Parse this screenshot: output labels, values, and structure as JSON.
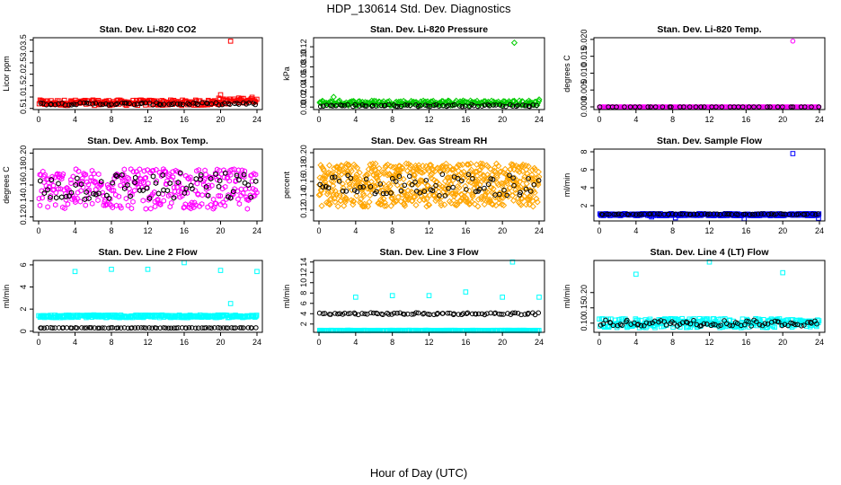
{
  "figure": {
    "title": "HDP_130614  Std. Dev. Diagnostics",
    "xlabel": "Hour of Day (UTC)"
  },
  "chart_data": [
    {
      "type": "scatter",
      "title": "Stan. Dev. Li-820 CO2",
      "ylabel": "Licor ppm",
      "xlim": [
        0,
        24
      ],
      "xticks": [
        "0",
        "4",
        "8",
        "12",
        "16",
        "20",
        "24"
      ],
      "ylim": [
        0.45,
        3.6
      ],
      "yticks": [
        "0.5",
        "1.0",
        "1.5",
        "2.0",
        "2.5",
        "3.0",
        "3.5"
      ],
      "series": [
        {
          "name": "red",
          "color": "#ff0000",
          "marker": "square",
          "base": 0.75,
          "spread": 0.12,
          "n": 240,
          "outliers": [
            [
              21.1,
              3.45
            ],
            [
              20.0,
              1.1
            ],
            [
              19.8,
              0.95
            ]
          ]
        },
        {
          "name": "black",
          "color": "#000000",
          "marker": "circle",
          "base": 0.7,
          "spread": 0.05,
          "n": 70
        }
      ]
    },
    {
      "type": "scatter",
      "title": "Stan. Dev. Li-820 Pressure",
      "ylabel": "kPa",
      "xlim": [
        0,
        24
      ],
      "xticks": [
        "0",
        "4",
        "8",
        "12",
        "16",
        "20",
        "24"
      ],
      "ylim": [
        -0.005,
        0.138
      ],
      "yticks": [
        "0.00",
        "0.02",
        "0.04",
        "0.06",
        "0.08",
        "0.10",
        "0.12"
      ],
      "series": [
        {
          "name": "green",
          "color": "#00cc00",
          "marker": "diamond",
          "base": 0.008,
          "spread": 0.005,
          "n": 240,
          "outliers": [
            [
              21.3,
              0.128
            ],
            [
              24.0,
              0.015
            ],
            [
              1.6,
              0.02
            ]
          ]
        },
        {
          "name": "black",
          "color": "#000000",
          "marker": "circle",
          "base": 0.003,
          "spread": 0.002,
          "n": 70
        }
      ]
    },
    {
      "type": "scatter",
      "title": "Stan. Dev. Li-820 Temp.",
      "ylabel": "degrees C",
      "xlim": [
        0,
        24
      ],
      "xticks": [
        "0",
        "4",
        "8",
        "12",
        "16",
        "20",
        "24"
      ],
      "ylim": [
        -0.0008,
        0.0205
      ],
      "yticks": [
        "0.000",
        "0.005",
        "0.010",
        "0.015",
        "0.020"
      ],
      "series": [
        {
          "name": "magenta",
          "color": "#ff00ff",
          "marker": "circle",
          "base": 0.0,
          "spread": 0.0,
          "n": 240,
          "outliers": [
            [
              21.1,
              0.0195
            ]
          ]
        },
        {
          "name": "black",
          "color": "#000000",
          "marker": "circle",
          "base": 0.0,
          "spread": 0.0,
          "n": 40
        }
      ]
    },
    {
      "type": "scatter",
      "title": "Stan. Dev. Amb. Box Temp.",
      "ylabel": "degrees C",
      "xlim": [
        0,
        24
      ],
      "xticks": [
        "0",
        "4",
        "8",
        "12",
        "16",
        "20",
        "24"
      ],
      "ylim": [
        0.115,
        0.205
      ],
      "yticks": [
        "0.12",
        "0.14",
        "0.16",
        "0.18",
        "0.20"
      ],
      "series": [
        {
          "name": "magenta",
          "color": "#ff00ff",
          "marker": "hexagon",
          "base": 0.155,
          "spread": 0.025,
          "n": 330
        },
        {
          "name": "black",
          "color": "#000000",
          "marker": "hexagon",
          "base": 0.158,
          "spread": 0.018,
          "n": 70
        }
      ]
    },
    {
      "type": "scatter",
      "title": "Stan. Dev. Gas Stream RH",
      "ylabel": "percent",
      "xlim": [
        0,
        24
      ],
      "xticks": [
        "0",
        "4",
        "8",
        "12",
        "16",
        "20",
        "24"
      ],
      "ylim": [
        0.105,
        0.205
      ],
      "yticks": [
        "0.12",
        "0.14",
        "0.16",
        "0.18",
        "0.20"
      ],
      "series": [
        {
          "name": "orange",
          "color": "#ffa500",
          "marker": "diamond",
          "base": 0.155,
          "spread": 0.03,
          "n": 600
        },
        {
          "name": "black",
          "color": "#000000",
          "marker": "circle",
          "base": 0.155,
          "spread": 0.015,
          "n": 70
        }
      ]
    },
    {
      "type": "scatter",
      "title": "Stan. Dev. Sample Flow",
      "ylabel": "ml/min",
      "xlim": [
        0,
        24
      ],
      "xticks": [
        "0",
        "4",
        "8",
        "12",
        "16",
        "20",
        "24"
      ],
      "ylim": [
        0.3,
        8.3
      ],
      "yticks": [
        "2",
        "4",
        "6",
        "8"
      ],
      "series": [
        {
          "name": "blue",
          "color": "#0000ff",
          "marker": "square",
          "base": 1.0,
          "spread": 0.12,
          "n": 260,
          "outliers": [
            [
              21.1,
              7.8
            ],
            [
              15.8,
              0.55
            ],
            [
              23.9,
              0.6
            ],
            [
              8.3,
              0.65
            ],
            [
              5.7,
              0.75
            ]
          ]
        },
        {
          "name": "black",
          "color": "#000000",
          "marker": "circle",
          "base": 1.05,
          "spread": 0.05,
          "n": 70
        }
      ]
    },
    {
      "type": "scatter",
      "title": "Stan. Dev. Line 2 Flow",
      "ylabel": "ml/min",
      "xlim": [
        0,
        24
      ],
      "xticks": [
        "0",
        "4",
        "8",
        "12",
        "16",
        "20",
        "24"
      ],
      "ylim": [
        -0.1,
        6.4
      ],
      "yticks": [
        "0",
        "2",
        "4",
        "6"
      ],
      "series": [
        {
          "name": "cyan",
          "color": "#00ffff",
          "marker": "square",
          "base": 1.35,
          "spread": 0.12,
          "n": 260,
          "outliers": [
            [
              4.0,
              5.4
            ],
            [
              8.0,
              5.6
            ],
            [
              12.0,
              5.6
            ],
            [
              16.0,
              6.2
            ],
            [
              20.0,
              5.5
            ],
            [
              24.0,
              5.4
            ],
            [
              21.1,
              2.5
            ]
          ]
        },
        {
          "name": "black",
          "color": "#000000",
          "marker": "circle",
          "base": 0.3,
          "spread": 0.02,
          "n": 80
        }
      ]
    },
    {
      "type": "scatter",
      "title": "Stan. Dev. Line 3 Flow",
      "ylabel": "ml/min",
      "xlim": [
        0,
        24
      ],
      "xticks": [
        "0",
        "4",
        "8",
        "12",
        "16",
        "20",
        "24"
      ],
      "ylim": [
        0.4,
        14.3
      ],
      "yticks": [
        "2",
        "4",
        "6",
        "8",
        "10",
        "12",
        "14"
      ],
      "series": [
        {
          "name": "cyan",
          "color": "#00ffff",
          "marker": "square",
          "base": 0.75,
          "spread": 0.05,
          "n": 260,
          "outliers": [
            [
              4.0,
              7.2
            ],
            [
              8.0,
              7.5
            ],
            [
              12.0,
              7.5
            ],
            [
              16.0,
              8.2
            ],
            [
              20.0,
              7.2
            ],
            [
              21.1,
              14.0
            ],
            [
              24.0,
              7.2
            ]
          ]
        },
        {
          "name": "black",
          "color": "#000000",
          "marker": "circle",
          "base": 4.0,
          "spread": 0.2,
          "n": 80
        }
      ]
    },
    {
      "type": "scatter",
      "title": "Stan. Dev. Line 4 (LT) Flow",
      "ylabel": "ml/min",
      "xlim": [
        0,
        24
      ],
      "xticks": [
        "0",
        "4",
        "8",
        "12",
        "16",
        "20",
        "24"
      ],
      "ylim": [
        0.07,
        0.305
      ],
      "yticks": [
        "0.10",
        "0.15",
        "0.20"
      ],
      "series": [
        {
          "name": "cyan",
          "color": "#00ffff",
          "marker": "square",
          "base": 0.1,
          "spread": 0.015,
          "n": 260,
          "outliers": [
            [
              4.0,
              0.26
            ],
            [
              12.0,
              0.3
            ],
            [
              20.0,
              0.265
            ]
          ]
        },
        {
          "name": "black",
          "color": "#000000",
          "marker": "circle",
          "base": 0.1,
          "spread": 0.01,
          "n": 80
        }
      ]
    }
  ]
}
